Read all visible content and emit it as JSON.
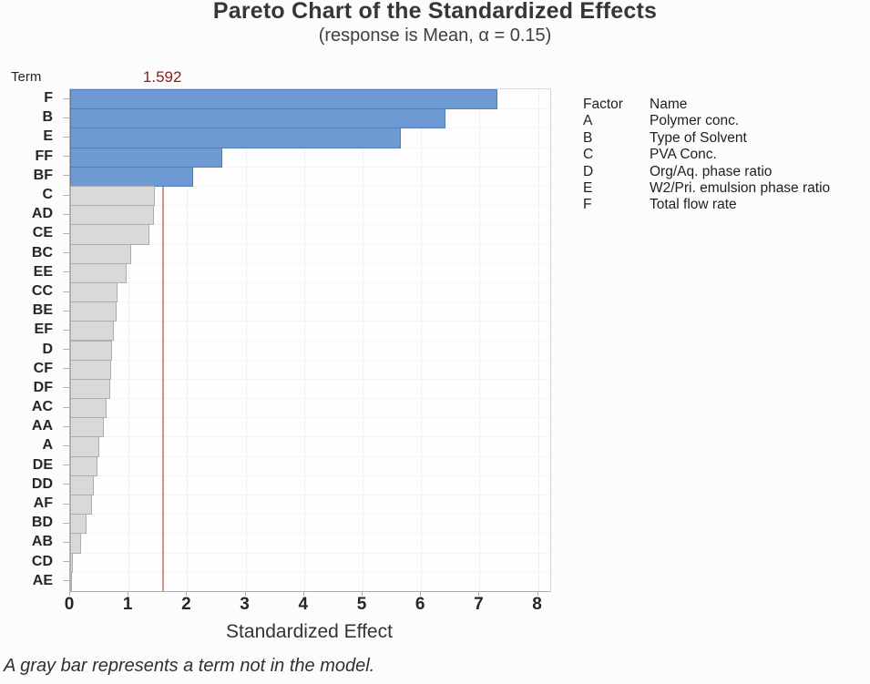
{
  "title": "Pareto Chart of the Standardized Effects",
  "subtitle": "(response is Mean, α = 0.15)",
  "axis": {
    "y_title": "Term",
    "x_title": "Standardized Effect",
    "x_ticks": [
      0,
      1,
      2,
      3,
      4,
      5,
      6,
      7,
      8
    ]
  },
  "reference_line": {
    "value": 1.592,
    "label": "1.592",
    "label_color": "#8e1b1b",
    "line_color": "#cf9289"
  },
  "legend": {
    "header": {
      "factor": "Factor",
      "name": "Name"
    },
    "rows": [
      {
        "factor": "A",
        "name": "Polymer conc."
      },
      {
        "factor": "B",
        "name": "Type of Solvent"
      },
      {
        "factor": "C",
        "name": "PVA Conc."
      },
      {
        "factor": "D",
        "name": "Org/Aq. phase ratio"
      },
      {
        "factor": "E",
        "name": "W2/Pri. emulsion phase ratio"
      },
      {
        "factor": "F",
        "name": "Total flow rate"
      }
    ]
  },
  "footnote": "A gray bar represents a term not in the model.",
  "chart_data": {
    "type": "bar",
    "orientation": "horizontal",
    "title": "Pareto Chart of the Standardized Effects",
    "subtitle": "(response is Mean, α = 0.15)",
    "xlabel": "Standardized Effect",
    "ylabel": "Term",
    "xlim": [
      0,
      8.2
    ],
    "grid": true,
    "alpha": 0.15,
    "reference_value": 1.592,
    "categories": [
      "F",
      "B",
      "E",
      "FF",
      "BF",
      "C",
      "AD",
      "CE",
      "BC",
      "EE",
      "CC",
      "BE",
      "EF",
      "D",
      "CF",
      "DF",
      "AC",
      "AA",
      "A",
      "DE",
      "DD",
      "AF",
      "BD",
      "AB",
      "CD",
      "AE"
    ],
    "values": [
      7.3,
      6.41,
      5.65,
      2.6,
      2.1,
      1.45,
      1.43,
      1.36,
      1.04,
      0.97,
      0.81,
      0.79,
      0.75,
      0.72,
      0.7,
      0.68,
      0.63,
      0.57,
      0.5,
      0.46,
      0.41,
      0.37,
      0.28,
      0.18,
      0.05,
      0.02
    ],
    "in_model": [
      true,
      true,
      true,
      true,
      true,
      false,
      false,
      false,
      false,
      false,
      false,
      false,
      false,
      false,
      false,
      false,
      false,
      false,
      false,
      false,
      false,
      false,
      false,
      false,
      false,
      false
    ],
    "colors": {
      "in_model_fill": "#6e9ad3",
      "in_model_border": "#527eb8",
      "not_in_model_fill": "#d9d9d9",
      "not_in_model_border": "#aeaeae"
    }
  }
}
